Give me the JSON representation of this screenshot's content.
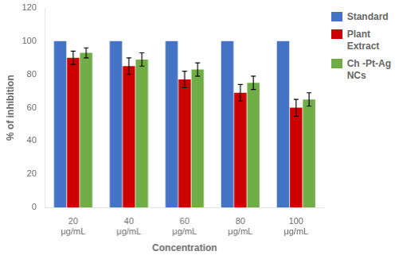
{
  "chart_data": {
    "type": "bar",
    "xlabel": "Concentration",
    "ylabel": "% of inhibition",
    "categories": [
      "20\nμg/mL",
      "40\nμg/mL",
      "60\nμg/mL",
      "80\nμg/mL",
      "100\nμg/mL"
    ],
    "series": [
      {
        "name": "Standard",
        "color": "#4472c4",
        "values": [
          100,
          100,
          100,
          100,
          100
        ]
      },
      {
        "name": "Plant\nExtract",
        "color": "#cc0000",
        "values": [
          90,
          85,
          77,
          69,
          60
        ],
        "errors": [
          4,
          5,
          5,
          5,
          5
        ]
      },
      {
        "name": "Ch -Pt-Ag\nNCs",
        "color": "#70ad47",
        "values": [
          93,
          89,
          83,
          75,
          65
        ],
        "errors": [
          3,
          4,
          4,
          4,
          4
        ]
      }
    ],
    "ylim": [
      0,
      120
    ],
    "yticks": [
      0,
      20,
      40,
      60,
      80,
      100,
      120
    ],
    "grid": false,
    "legend": "right"
  }
}
